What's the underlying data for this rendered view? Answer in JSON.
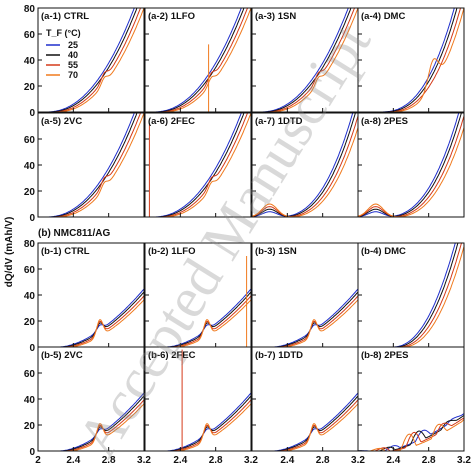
{
  "chart_data": {
    "type": "line",
    "ylabel": "dQ/dV (mAh/V)",
    "xticks": [
      "2",
      "2.4",
      "2.8",
      "3.2"
    ],
    "yticks_top": [
      "0",
      "20",
      "40",
      "60",
      "80"
    ],
    "yticks_bottom": [
      "0",
      "20",
      "40",
      "60",
      "80"
    ],
    "x_range": [
      2.0,
      3.2
    ],
    "y_range": [
      0,
      80
    ],
    "section_b_title": "(b) NMC811/AG",
    "legend": {
      "title": "T_F (°C)",
      "entries": [
        {
          "name": "25",
          "color": "#1f2fcc"
        },
        {
          "name": "40",
          "color": "#111111"
        },
        {
          "name": "55",
          "color": "#d43a1a"
        },
        {
          "name": "70",
          "color": "#f07a1e"
        }
      ]
    },
    "panels": [
      {
        "label": "(a-1) CTRL",
        "row": 0,
        "col": 0,
        "profile": "smooth"
      },
      {
        "label": "(a-2) 1LFO",
        "row": 0,
        "col": 1,
        "profile": "smooth",
        "spike": {
          "x": 2.72,
          "y": 52,
          "series": 3
        }
      },
      {
        "label": "(a-3) 1SN",
        "row": 0,
        "col": 2,
        "profile": "smooth"
      },
      {
        "label": "(a-4) DMC",
        "row": 0,
        "col": 3,
        "profile": "steep"
      },
      {
        "label": "(a-5) 2VC",
        "row": 1,
        "col": 0,
        "profile": "smooth"
      },
      {
        "label": "(a-6) 2FEC",
        "row": 1,
        "col": 1,
        "profile": "smooth",
        "spike": {
          "x": 2.05,
          "y": 72,
          "series": 2
        }
      },
      {
        "label": "(a-7) 1DTD",
        "row": 1,
        "col": 2,
        "profile": "hump"
      },
      {
        "label": "(a-8) 2PES",
        "row": 1,
        "col": 3,
        "profile": "hump"
      },
      {
        "label": "(b-1) CTRL",
        "row": 2,
        "col": 0,
        "profile": "low"
      },
      {
        "label": "(b-2) 1LFO",
        "row": 2,
        "col": 1,
        "profile": "low",
        "spike": {
          "x": 3.15,
          "y": 70,
          "series": 3
        }
      },
      {
        "label": "(b-3) 1SN",
        "row": 2,
        "col": 2,
        "profile": "low"
      },
      {
        "label": "(b-4) DMC",
        "row": 2,
        "col": 3,
        "profile": "steep_low"
      },
      {
        "label": "(b-5) 2VC",
        "row": 3,
        "col": 0,
        "profile": "low"
      },
      {
        "label": "(b-6) 2FEC",
        "row": 3,
        "col": 1,
        "profile": "low",
        "spike": {
          "x": 2.42,
          "y": 78,
          "series": 2
        }
      },
      {
        "label": "(b-7) 1DTD",
        "row": 3,
        "col": 2,
        "profile": "low"
      },
      {
        "label": "(b-8) 2PES",
        "row": 3,
        "col": 3,
        "profile": "low_wavy"
      }
    ]
  },
  "watermark": "Accepted Manuscript"
}
